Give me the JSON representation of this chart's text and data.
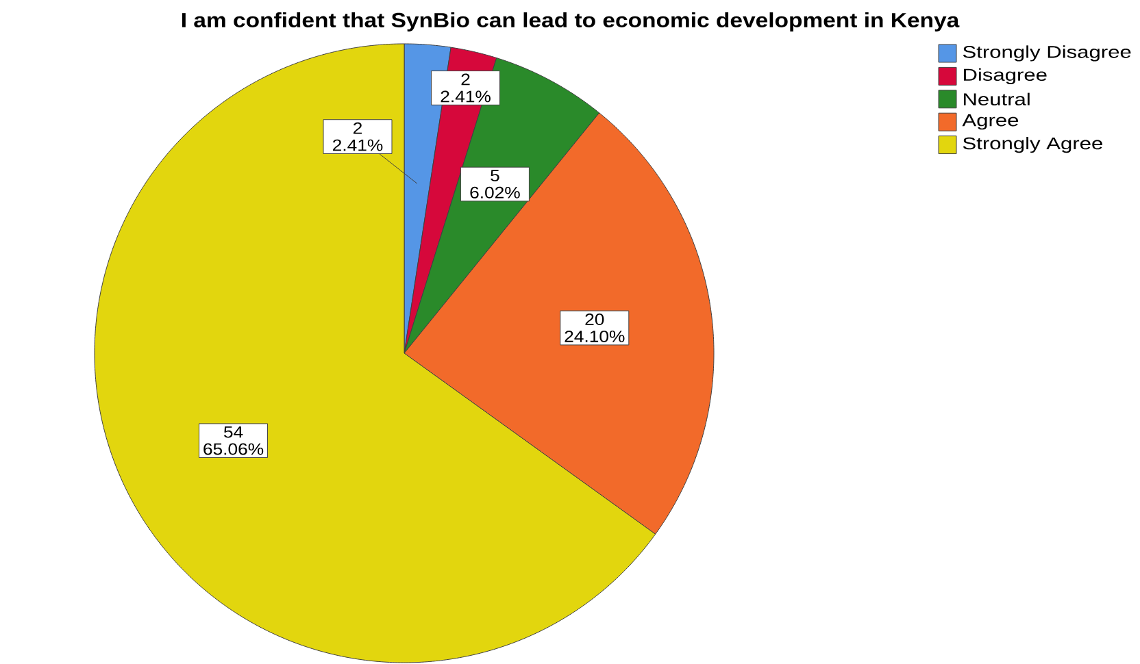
{
  "chart_data": {
    "type": "pie",
    "title": "I am confident that SynBio can lead to economic development in Kenya",
    "categories": [
      "Strongly Disagree",
      "Disagree",
      "Neutral",
      "Agree",
      "Strongly Agree"
    ],
    "values": [
      2,
      2,
      5,
      20,
      54
    ],
    "colors": [
      "#5596e6",
      "#d6083b",
      "#2a8a2a",
      "#f26a2a",
      "#e2d60e"
    ],
    "value_labels": [
      "2 2.41%",
      "2 2.41%",
      "5 6.02%",
      "20 24.10%",
      "54 65.06%"
    ],
    "legend": "top right"
  }
}
